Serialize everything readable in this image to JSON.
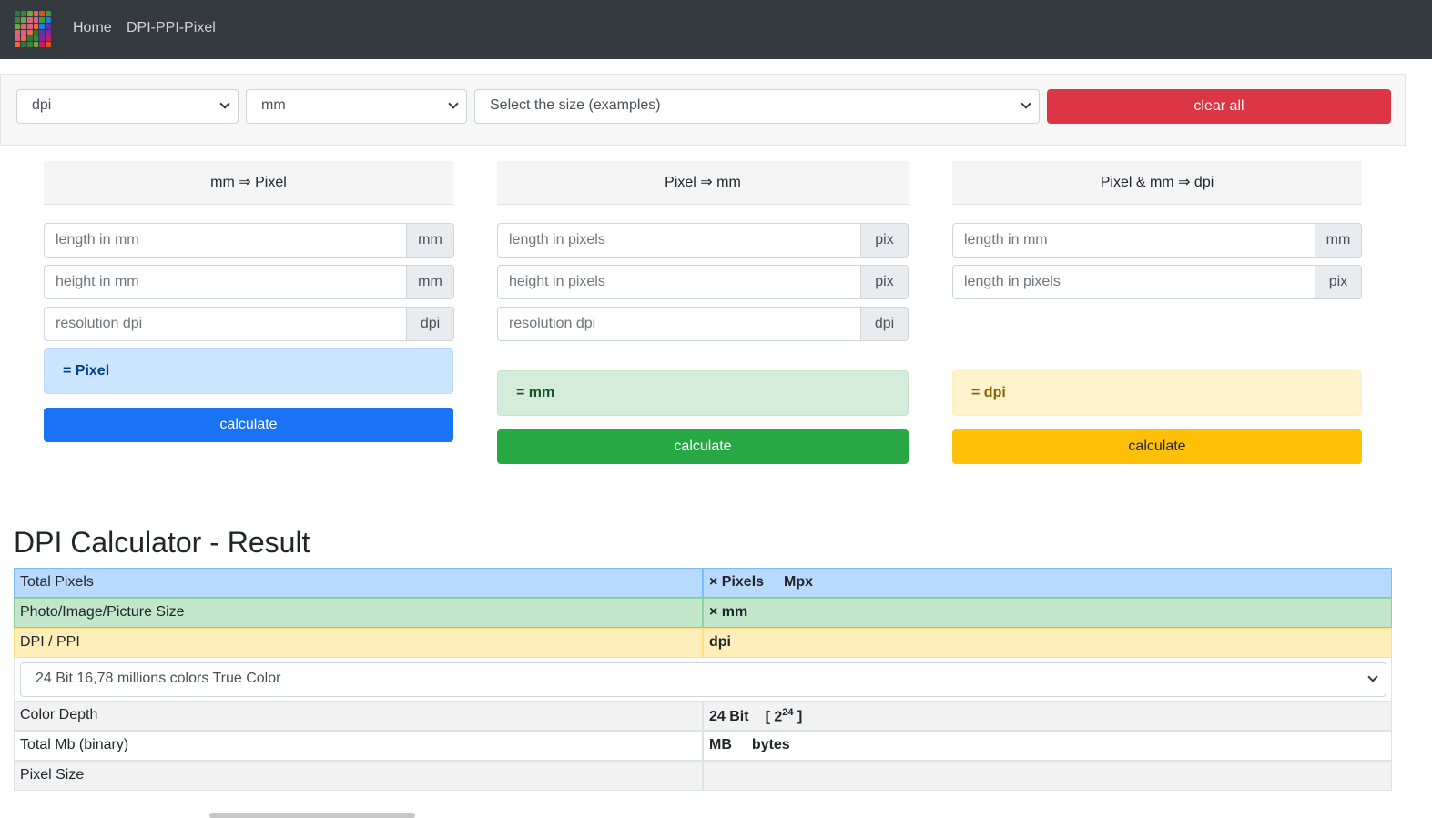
{
  "nav": {
    "home": "Home",
    "dpi_ppi_pixel": "DPI-PPI-Pixel"
  },
  "toolbar": {
    "unit_resolution": "dpi",
    "unit_length": "mm",
    "size_examples": "Select the size (examples)",
    "clear_all": "clear all"
  },
  "cards": [
    {
      "header": "mm ⇒ Pixel",
      "fields": [
        {
          "placeholder": "length in mm",
          "addon": "mm"
        },
        {
          "placeholder": "height in mm",
          "addon": "mm"
        },
        {
          "placeholder": "resolution dpi",
          "addon": "dpi"
        }
      ],
      "result": "= Pixel",
      "button": "calculate"
    },
    {
      "header": "Pixel ⇒ mm",
      "fields": [
        {
          "placeholder": "length in pixels",
          "addon": "pix"
        },
        {
          "placeholder": "height in pixels",
          "addon": "pix"
        },
        {
          "placeholder": "resolution dpi",
          "addon": "dpi"
        }
      ],
      "result": "= mm",
      "button": "calculate"
    },
    {
      "header": "Pixel & mm ⇒ dpi",
      "fields": [
        {
          "placeholder": "length in mm",
          "addon": "mm"
        },
        {
          "placeholder": "length in pixels",
          "addon": "pix"
        }
      ],
      "result": "= dpi",
      "button": "calculate"
    }
  ],
  "result": {
    "title": "DPI Calculator - Result",
    "total_pixels_label": "Total Pixels",
    "total_pixels_value_a": "× Pixels",
    "total_pixels_value_b": "Mpx",
    "size_label": "Photo/Image/Picture Size",
    "size_value": "× mm",
    "dpi_label": "DPI / PPI",
    "dpi_value": "dpi",
    "color_select": "24 Bit 16,78 millions colors True Color",
    "color_depth_label": "Color Depth",
    "color_depth_value": "24 Bit",
    "color_depth_formula_open": "[ 2",
    "color_depth_exponent": "24",
    "color_depth_formula_close": " ]",
    "total_mb_label": "Total Mb (binary)",
    "total_mb_value_a": "MB",
    "total_mb_value_b": "bytes",
    "pixel_size_label": "Pixel Size",
    "pixel_size_value": ""
  },
  "colors": {
    "navbar": "#343a40",
    "clear_all": "#dc3545",
    "primary": "#1a73f5",
    "success": "#28a745",
    "warning": "#ffc107",
    "row_blue": "#b8daff",
    "row_green": "#c3e6cb",
    "row_yellow": "#ffeeba"
  }
}
